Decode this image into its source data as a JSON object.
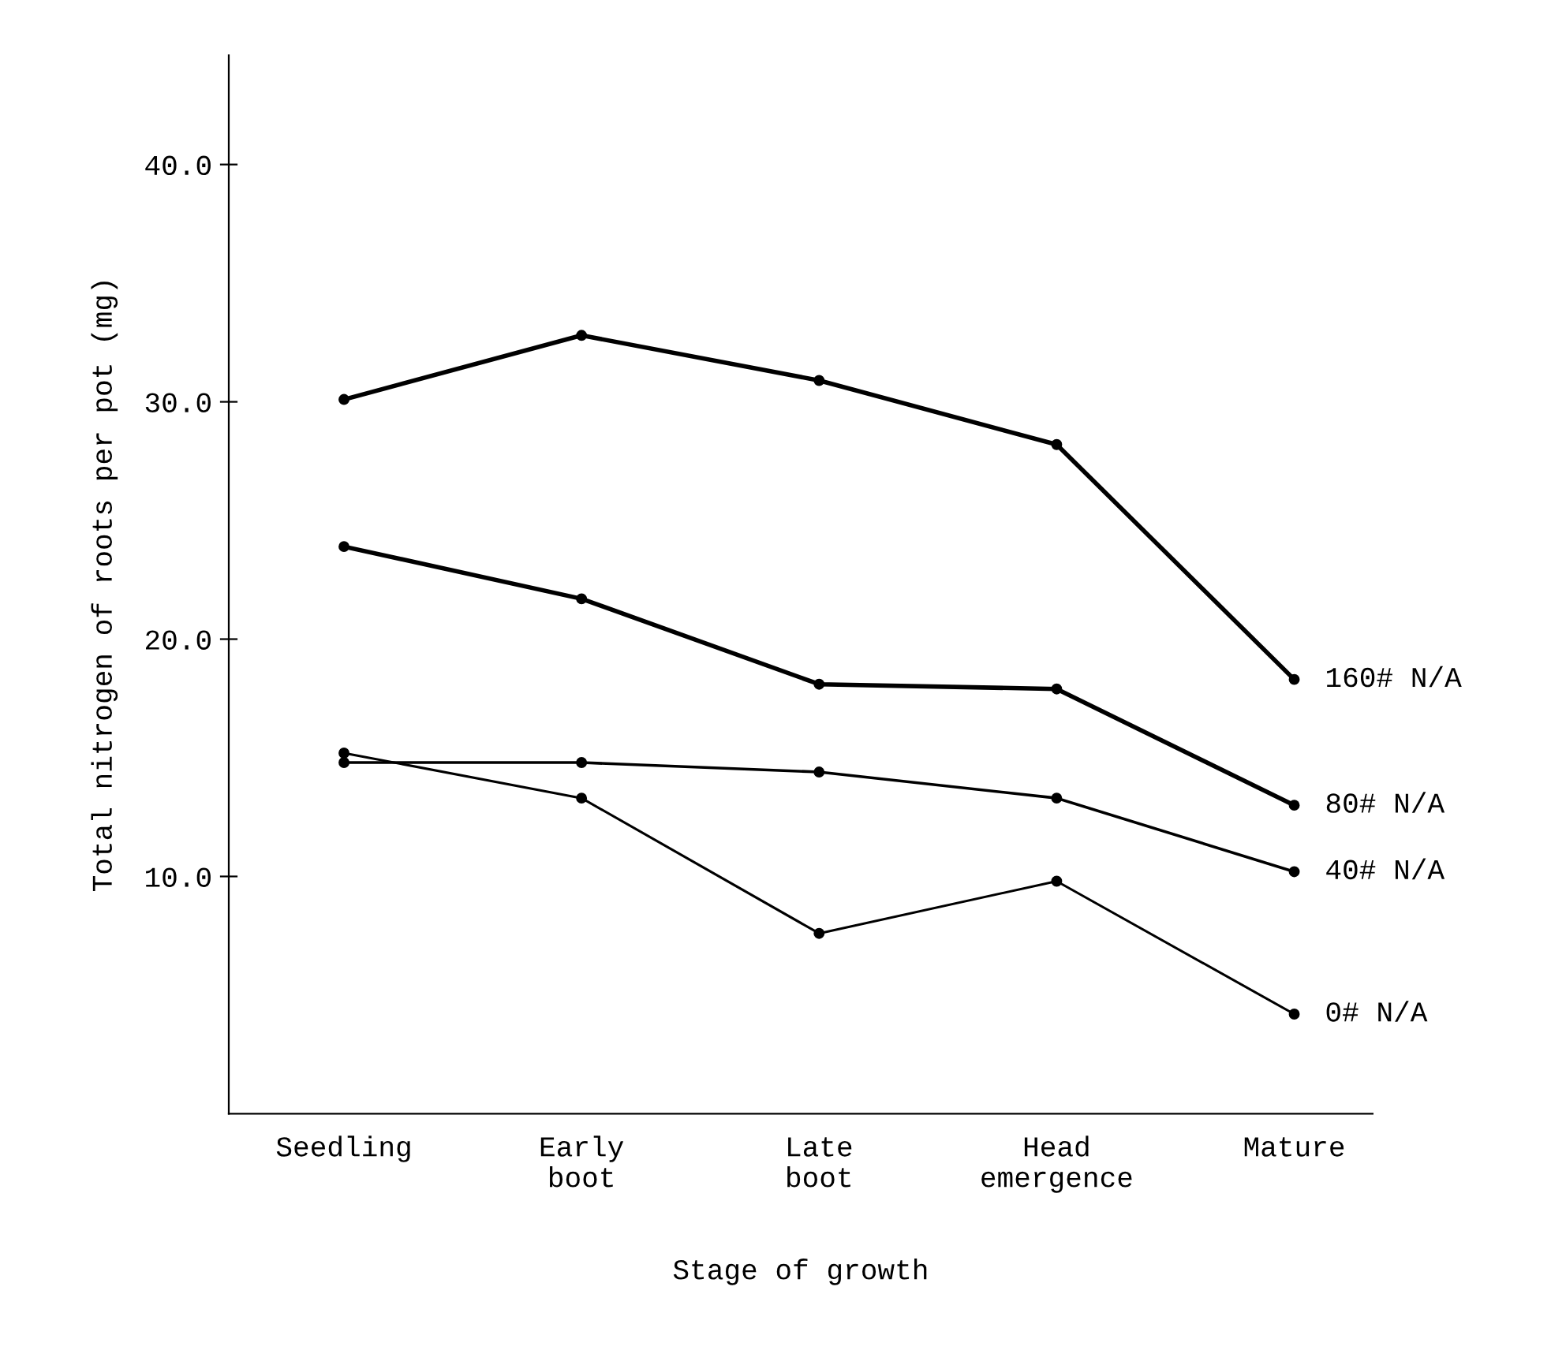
{
  "chart_data": {
    "type": "line",
    "xlabel": "Stage of growth",
    "ylabel": "Total nitrogen of roots per pot (mg)",
    "categories": [
      "Seedling",
      "Early\nboot",
      "Late\nboot",
      "Head\nemergence",
      "Mature"
    ],
    "ylim": [
      0,
      44.6
    ],
    "yticks": [
      {
        "value": 10,
        "label": "10.0"
      },
      {
        "value": 20,
        "label": "20.0"
      },
      {
        "value": 30,
        "label": "30.0"
      },
      {
        "value": 40,
        "label": "40.0"
      }
    ],
    "grid": false,
    "legend": false,
    "marker": "circle",
    "line_style": "solid",
    "series": [
      {
        "name": "160# N/A",
        "color": "#000000",
        "values": [
          30.1,
          32.8,
          30.9,
          28.2,
          18.3
        ]
      },
      {
        "name": "80# N/A",
        "color": "#000000",
        "values": [
          23.9,
          21.7,
          18.1,
          17.9,
          13.0
        ]
      },
      {
        "name": "40# N/A",
        "color": "#000000",
        "values": [
          14.8,
          14.8,
          14.4,
          13.3,
          10.2
        ]
      },
      {
        "name": "0# N/A",
        "color": "#000000",
        "values": [
          15.2,
          13.3,
          7.6,
          9.8,
          4.2
        ]
      }
    ]
  }
}
